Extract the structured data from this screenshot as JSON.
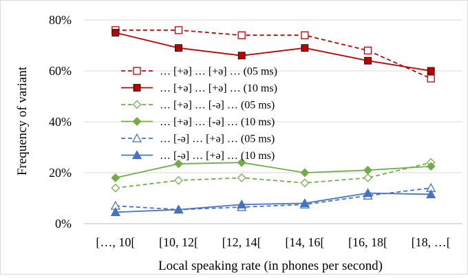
{
  "chart_data": {
    "type": "line",
    "xlabel": "Local speaking rate (in phones per second)",
    "ylabel": "Frequency of variant",
    "categories": [
      "[…, 10[",
      "[10, 12[",
      "[12, 14[",
      "[14, 16[",
      "[16, 18[",
      "[18, …["
    ],
    "ylim": [
      0,
      80
    ],
    "yticks": [
      0,
      20,
      40,
      60,
      80
    ],
    "ytick_labels": [
      "0%",
      "20%",
      "40%",
      "60%",
      "80%"
    ],
    "grid": "horizontal",
    "legend_position": "center-left",
    "series": [
      {
        "name": "… [+ə] … [+ə] … (05 ms)",
        "color": "#c00000",
        "dash": true,
        "marker": "square-open",
        "values": [
          76,
          76,
          74,
          74,
          68,
          57
        ]
      },
      {
        "name": "… [+ə] … [+ə] … (10 ms)",
        "color": "#c00000",
        "dash": false,
        "marker": "square-filled",
        "values": [
          75,
          69,
          66,
          69,
          64,
          60
        ]
      },
      {
        "name": "… [+ə] … [-ə] … (05 ms)",
        "color": "#70ad47",
        "dash": true,
        "marker": "diamond-open",
        "values": [
          14,
          17,
          18,
          16,
          18,
          24
        ]
      },
      {
        "name": "… [+ə] … [-ə] … (10 ms)",
        "color": "#70ad47",
        "dash": false,
        "marker": "diamond-filled",
        "values": [
          18,
          23.5,
          24,
          20,
          21,
          22.5
        ]
      },
      {
        "name": "… [-ə] … [+ə] … (05 ms)",
        "color": "#4472c4",
        "dash": true,
        "marker": "triangle-open",
        "values": [
          7,
          5.5,
          6.5,
          7.5,
          11,
          14
        ]
      },
      {
        "name": "… [-ə] … [+ə] … (10 ms)",
        "color": "#4472c4",
        "dash": false,
        "marker": "triangle-filled",
        "values": [
          4.5,
          5.5,
          7.5,
          8,
          12,
          11.5
        ]
      }
    ]
  }
}
